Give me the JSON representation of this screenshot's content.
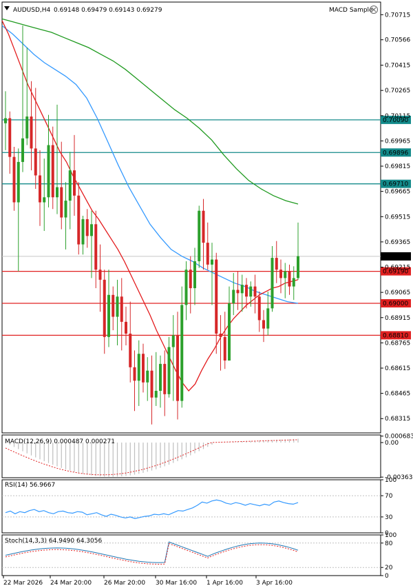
{
  "header": {
    "symbol": "AUDUSD,H4",
    "ohlc": "0.69148 0.69479 0.69143 0.69279",
    "indicator_label": "MACD Sample"
  },
  "colors": {
    "bull": "#2ca02c",
    "bear": "#d62728",
    "ma_fast": "#e31a1c",
    "ma_mid": "#3399ff",
    "ma_slow": "#1f9a1f",
    "level_teal": "#138a8a",
    "level_red": "#e02020",
    "current_price": "#000000"
  },
  "chart_data": [
    {
      "type": "candlestick",
      "name": "main",
      "price_axis": [
        "0.70715",
        "0.70566",
        "0.70415",
        "0.70265",
        "0.70115",
        "0.69965",
        "0.69815",
        "0.69665",
        "0.69515",
        "0.69365",
        "0.69215",
        "0.69065",
        "0.68915",
        "0.68765",
        "0.68615",
        "0.68465",
        "0.68315"
      ],
      "ylim": [
        0.6823,
        0.7079
      ],
      "time_labels": [
        "22 Mar 2026",
        "24 Mar 20:00",
        "26 Mar 20:00",
        "30 Mar 16:00",
        "1 Apr 16:00",
        "3 Apr 16:00"
      ],
      "horizontal_levels": [
        {
          "value": "0.70090",
          "color": "teal"
        },
        {
          "value": "0.69896",
          "color": "teal"
        },
        {
          "value": "0.69710",
          "color": "teal"
        },
        {
          "value": "0.69190",
          "color": "red"
        },
        {
          "value": "0.69000",
          "color": "red"
        },
        {
          "value": "0.68810",
          "color": "red"
        }
      ],
      "current_price": "0.69279",
      "candles": [
        [
          0.7007,
          0.7026,
          0.6991,
          0.701
        ],
        [
          0.701,
          0.7014,
          0.6977,
          0.6987
        ],
        [
          0.6987,
          0.6993,
          0.6955,
          0.696
        ],
        [
          0.696,
          0.6992,
          0.6919,
          0.6984
        ],
        [
          0.6984,
          0.7065,
          0.6978,
          0.6998
        ],
        [
          0.6998,
          0.7052,
          0.6994,
          0.7011
        ],
        [
          0.7011,
          0.7032,
          0.6979,
          0.6992
        ],
        [
          0.6992,
          0.7028,
          0.6968,
          0.6976
        ],
        [
          0.6976,
          0.6991,
          0.6946,
          0.696
        ],
        [
          0.696,
          0.6986,
          0.6943,
          0.6963
        ],
        [
          0.6963,
          0.7012,
          0.6957,
          0.6994
        ],
        [
          0.6994,
          0.7005,
          0.6956,
          0.6963
        ],
        [
          0.6963,
          0.7018,
          0.6953,
          0.6969
        ],
        [
          0.6969,
          0.6996,
          0.6944,
          0.6951
        ],
        [
          0.6951,
          0.6972,
          0.6932,
          0.6961
        ],
        [
          0.6961,
          0.699,
          0.6944,
          0.6979
        ],
        [
          0.6979,
          0.7,
          0.6952,
          0.6964
        ],
        [
          0.6964,
          0.6972,
          0.6929,
          0.6935
        ],
        [
          0.6935,
          0.6952,
          0.6929,
          0.695
        ],
        [
          0.695,
          0.6956,
          0.6933,
          0.694
        ],
        [
          0.694,
          0.6955,
          0.6915,
          0.6947
        ],
        [
          0.6947,
          0.6955,
          0.6909,
          0.692
        ],
        [
          0.692,
          0.6935,
          0.6895,
          0.6914
        ],
        [
          0.6914,
          0.692,
          0.687,
          0.688
        ],
        [
          0.688,
          0.692,
          0.6874,
          0.6905
        ],
        [
          0.6905,
          0.691,
          0.6884,
          0.6892
        ],
        [
          0.6892,
          0.6914,
          0.6875,
          0.6904
        ],
        [
          0.6904,
          0.6915,
          0.6872,
          0.6889
        ],
        [
          0.6889,
          0.6898,
          0.6875,
          0.6882
        ],
        [
          0.6882,
          0.6901,
          0.6853,
          0.6862
        ],
        [
          0.6862,
          0.6872,
          0.6836,
          0.6854
        ],
        [
          0.6854,
          0.6878,
          0.6839,
          0.687
        ],
        [
          0.687,
          0.6876,
          0.6847,
          0.6853
        ],
        [
          0.6853,
          0.6868,
          0.6842,
          0.686
        ],
        [
          0.686,
          0.6869,
          0.6828,
          0.6844
        ],
        [
          0.6844,
          0.6871,
          0.6839,
          0.6848
        ],
        [
          0.6848,
          0.6869,
          0.6838,
          0.6864
        ],
        [
          0.6864,
          0.6872,
          0.6833,
          0.6846
        ],
        [
          0.6846,
          0.688,
          0.6844,
          0.6874
        ],
        [
          0.6874,
          0.6893,
          0.6842,
          0.6881
        ],
        [
          0.6881,
          0.6895,
          0.6831,
          0.6842
        ],
        [
          0.6842,
          0.691,
          0.6838,
          0.6899
        ],
        [
          0.6899,
          0.6925,
          0.689,
          0.692
        ],
        [
          0.692,
          0.6928,
          0.6894,
          0.6909
        ],
        [
          0.6909,
          0.6933,
          0.6899,
          0.6925
        ],
        [
          0.6925,
          0.6958,
          0.6921,
          0.6955
        ],
        [
          0.6955,
          0.6962,
          0.692,
          0.6936
        ],
        [
          0.6936,
          0.6948,
          0.692,
          0.6923
        ],
        [
          0.6923,
          0.6936,
          0.6899,
          0.6926
        ],
        [
          0.6926,
          0.693,
          0.687,
          0.6882
        ],
        [
          0.6882,
          0.6893,
          0.686,
          0.688
        ],
        [
          0.688,
          0.6895,
          0.6861,
          0.6866
        ],
        [
          0.6866,
          0.691,
          0.6866,
          0.69
        ],
        [
          0.69,
          0.6918,
          0.6893,
          0.6908
        ],
        [
          0.6908,
          0.6919,
          0.6896,
          0.6906
        ],
        [
          0.6906,
          0.6917,
          0.6895,
          0.6911
        ],
        [
          0.6911,
          0.6915,
          0.6897,
          0.6904
        ],
        [
          0.6904,
          0.6913,
          0.6898,
          0.691
        ],
        [
          0.691,
          0.6917,
          0.6894,
          0.6904
        ],
        [
          0.6904,
          0.6907,
          0.6883,
          0.689
        ],
        [
          0.689,
          0.6896,
          0.6877,
          0.6885
        ],
        [
          0.6885,
          0.6907,
          0.6881,
          0.6897
        ],
        [
          0.6897,
          0.6934,
          0.6895,
          0.6927
        ],
        [
          0.6927,
          0.6937,
          0.6912,
          0.692
        ],
        [
          0.692,
          0.6926,
          0.6906,
          0.6915
        ],
        [
          0.6915,
          0.6924,
          0.6903,
          0.6919
        ],
        [
          0.6919,
          0.6923,
          0.6905,
          0.691
        ],
        [
          0.691,
          0.6922,
          0.6902,
          0.6915
        ],
        [
          0.6915,
          0.6948,
          0.6914,
          0.6928
        ]
      ],
      "ma_fast": [
        0.7068,
        0.706,
        0.705,
        0.704,
        0.703,
        0.7022,
        0.7014,
        0.7006,
        0.6998,
        0.699,
        0.6984,
        0.6976,
        0.6969,
        0.6962,
        0.6955,
        0.695,
        0.6944,
        0.6938,
        0.6932,
        0.6925,
        0.6917,
        0.6909,
        0.6901,
        0.6893,
        0.6884,
        0.6876,
        0.6868,
        0.686,
        0.6853,
        0.6848,
        0.6852,
        0.686,
        0.6867,
        0.6873,
        0.688,
        0.6886,
        0.6891,
        0.6895,
        0.6899,
        0.6902,
        0.6905,
        0.6907,
        0.6909,
        0.691,
        0.6912,
        0.6913,
        0.6914
      ],
      "ma_mid": [
        0.7065,
        0.706,
        0.7054,
        0.7048,
        0.7043,
        0.7039,
        0.7035,
        0.703,
        0.7022,
        0.701,
        0.6996,
        0.6982,
        0.6969,
        0.6958,
        0.6947,
        0.6939,
        0.6932,
        0.6928,
        0.6925,
        0.6921,
        0.6918,
        0.6915,
        0.6912,
        0.691,
        0.6907,
        0.6905,
        0.6903,
        0.6901,
        0.69
      ],
      "ma_slow": [
        0.7069,
        0.7067,
        0.7065,
        0.7063,
        0.7061,
        0.7058,
        0.7055,
        0.7052,
        0.7048,
        0.7044,
        0.7039,
        0.7033,
        0.7027,
        0.7021,
        0.7015,
        0.701,
        0.7004,
        0.6997,
        0.6988,
        0.698,
        0.6973,
        0.6968,
        0.6964,
        0.6961,
        0.6959
      ]
    },
    {
      "type": "bar",
      "name": "MACD",
      "label": "MACD(12,26,9) 0.000487 0.000271",
      "axis": [
        "0.000683",
        "0.00",
        "-0.003637"
      ],
      "ylim": [
        -0.0037,
        0.0008
      ]
    },
    {
      "type": "line",
      "name": "RSI",
      "label": "RSI(14) 56.9667",
      "axis": [
        "100",
        "70",
        "30",
        "0"
      ],
      "ylim": [
        0,
        100
      ],
      "values": [
        38,
        41,
        36,
        40,
        38,
        42,
        44,
        40,
        42,
        38,
        36,
        40,
        41,
        38,
        37,
        40,
        39,
        34,
        36,
        38,
        34,
        31,
        35,
        33,
        30,
        28,
        30,
        27,
        29,
        31,
        32,
        35,
        34,
        36,
        34,
        38,
        42,
        41,
        44,
        47,
        52,
        58,
        56,
        60,
        62,
        60,
        56,
        54,
        57,
        55,
        52,
        55,
        53,
        51,
        54,
        52,
        58,
        60,
        57,
        55,
        54,
        57
      ]
    },
    {
      "type": "line",
      "name": "Stochastic",
      "label": "Stoch(14,3,3) 64.9490 64.3056",
      "axis": [
        "100",
        "80",
        "20",
        "0"
      ],
      "ylim": [
        0,
        100
      ]
    }
  ]
}
